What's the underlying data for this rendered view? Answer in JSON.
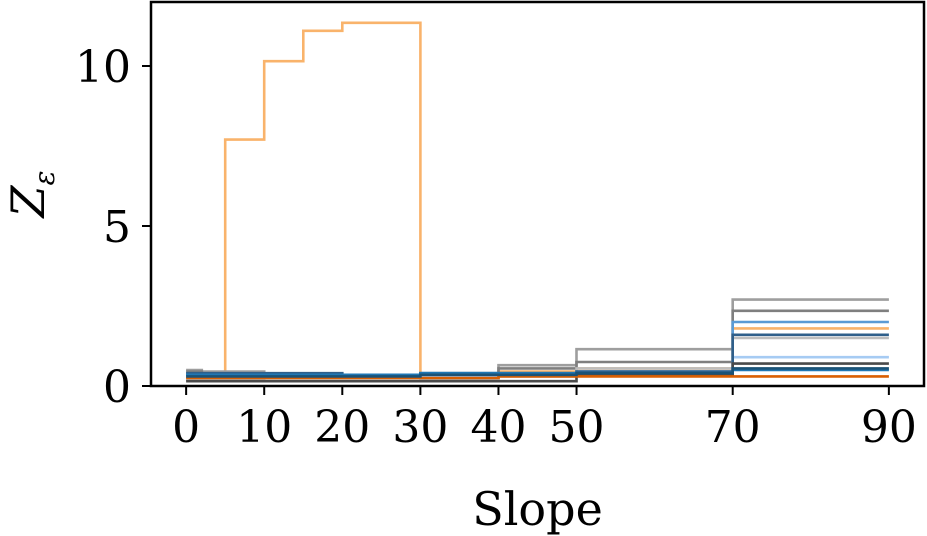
{
  "chart_data": {
    "type": "line",
    "step": "post",
    "xlabel": "Slope",
    "ylabel": "Z",
    "ylabel_sub": "ε",
    "xlim": [
      -4.5,
      94.5
    ],
    "ylim": [
      0,
      12
    ],
    "xticks": [
      0,
      10,
      20,
      30,
      40,
      50,
      70,
      90
    ],
    "yticks": [
      0,
      5,
      10
    ],
    "grid": false,
    "legend": "none",
    "series": [
      {
        "color": "#f9b36b",
        "x": [
          0,
          5,
          10,
          15,
          20,
          30,
          40,
          50,
          70,
          90
        ],
        "y": [
          0.25,
          7.7,
          10.15,
          11.1,
          11.35,
          0.35,
          0.45,
          0.55,
          1.8,
          1.8
        ]
      },
      {
        "color": "#9e9e9e",
        "x": [
          0,
          2,
          10,
          20,
          30,
          40,
          50,
          70,
          90
        ],
        "y": [
          0.5,
          0.45,
          0.35,
          0.35,
          0.4,
          0.65,
          1.15,
          2.7,
          2.7
        ]
      },
      {
        "color": "#7f7f7f",
        "x": [
          0,
          2,
          10,
          20,
          30,
          40,
          50,
          70,
          90
        ],
        "y": [
          0.45,
          0.3,
          0.25,
          0.25,
          0.25,
          0.55,
          0.75,
          2.35,
          2.35
        ]
      },
      {
        "color": "#bdbdbd",
        "x": [
          0,
          10,
          20,
          30,
          40,
          50,
          70,
          90
        ],
        "y": [
          0.2,
          0.15,
          0.15,
          0.2,
          0.3,
          0.55,
          1.5,
          1.5
        ]
      },
      {
        "color": "#5b9bd5",
        "x": [
          0,
          10,
          20,
          30,
          40,
          50,
          70,
          90
        ],
        "y": [
          0.35,
          0.35,
          0.35,
          0.35,
          0.35,
          0.45,
          2.0,
          2.0
        ]
      },
      {
        "color": "#a6cbf3",
        "x": [
          0,
          10,
          20,
          30,
          40,
          50,
          70,
          90
        ],
        "y": [
          0.3,
          0.3,
          0.3,
          0.3,
          0.35,
          0.4,
          0.9,
          0.9
        ]
      },
      {
        "color": "#2f5f8a",
        "x": [
          0,
          10,
          20,
          30,
          40,
          50,
          70,
          90
        ],
        "y": [
          0.4,
          0.4,
          0.35,
          0.4,
          0.4,
          0.45,
          1.6,
          1.6
        ]
      },
      {
        "color": "#4a4a4a",
        "x": [
          0,
          10,
          20,
          30,
          40,
          50,
          70,
          90
        ],
        "y": [
          0.15,
          0.15,
          0.15,
          0.15,
          0.15,
          0.35,
          0.7,
          0.7
        ]
      },
      {
        "color": "#d95f02",
        "x": [
          0,
          10,
          20,
          30,
          40,
          50,
          70,
          90
        ],
        "y": [
          0.25,
          0.25,
          0.25,
          0.25,
          0.3,
          0.3,
          0.3,
          0.3
        ]
      },
      {
        "color": "#1f77b4",
        "x": [
          0,
          10,
          20,
          30,
          40,
          50,
          70,
          90
        ],
        "y": [
          0.35,
          0.35,
          0.35,
          0.4,
          0.4,
          0.4,
          0.5,
          0.5
        ]
      },
      {
        "color": "#1a5276",
        "x": [
          0,
          10,
          20,
          30,
          40,
          50,
          70,
          90
        ],
        "y": [
          0.3,
          0.3,
          0.3,
          0.35,
          0.35,
          0.4,
          0.55,
          0.55
        ]
      }
    ]
  }
}
